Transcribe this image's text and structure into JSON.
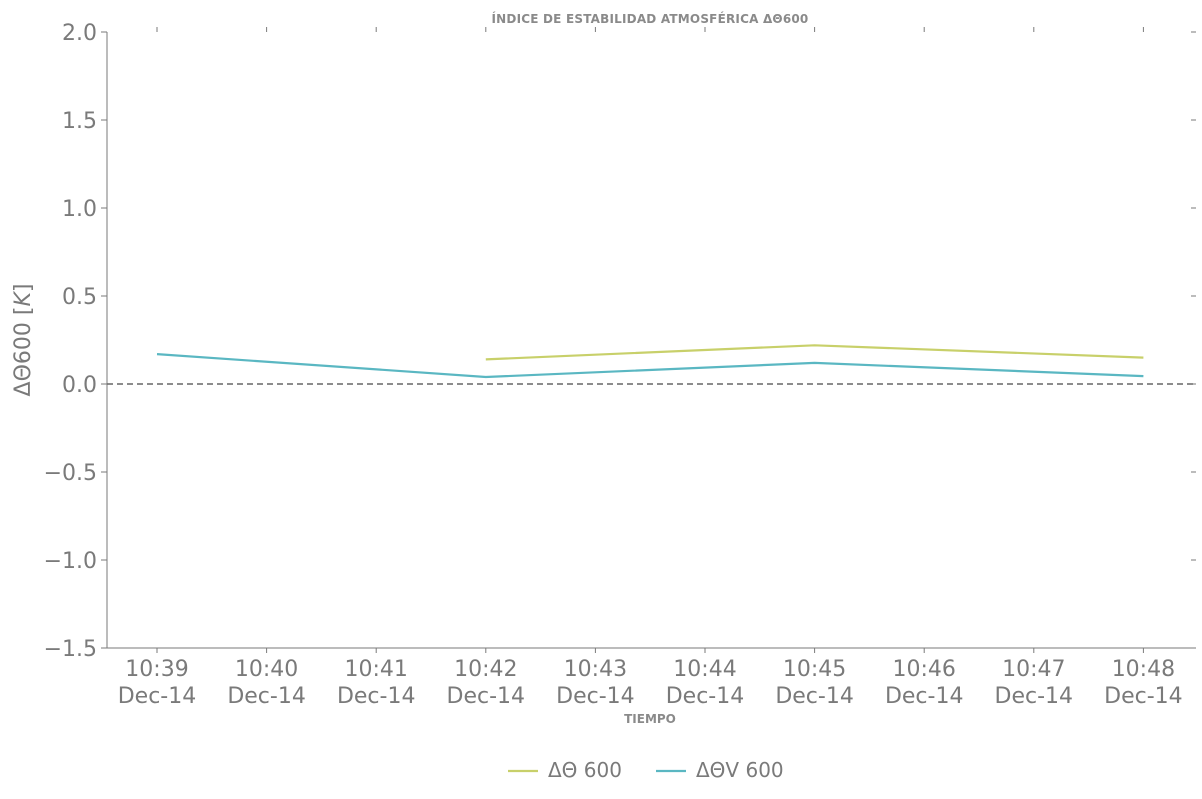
{
  "chart_data": {
    "type": "line",
    "title": "ÍNDICE DE ESTABILIDAD ATMOSFÉRICA ΔΘ600",
    "xlabel": "TIEMPO",
    "ylabel": "ΔΘ600 [K]",
    "ylim": [
      -1.5,
      2.0
    ],
    "yticks": [
      "−1.5",
      "−1.0",
      "−0.5",
      "0.0",
      "0.5",
      "1.0",
      "1.5",
      "2.0"
    ],
    "ytick_values": [
      -1.5,
      -1.0,
      -0.5,
      0.0,
      0.5,
      1.0,
      1.5,
      2.0
    ],
    "x_ticks": [
      {
        "time": "10:39",
        "date": "Dec-14"
      },
      {
        "time": "10:40",
        "date": "Dec-14"
      },
      {
        "time": "10:41",
        "date": "Dec-14"
      },
      {
        "time": "10:42",
        "date": "Dec-14"
      },
      {
        "time": "10:43",
        "date": "Dec-14"
      },
      {
        "time": "10:44",
        "date": "Dec-14"
      },
      {
        "time": "10:45",
        "date": "Dec-14"
      },
      {
        "time": "10:46",
        "date": "Dec-14"
      },
      {
        "time": "10:47",
        "date": "Dec-14"
      },
      {
        "time": "10:48",
        "date": "Dec-14"
      }
    ],
    "reference_line": {
      "y": 0.0,
      "style": "dashed",
      "color": "#666666"
    },
    "series": [
      {
        "name": "ΔΘ 600",
        "color": "#c8d06a",
        "x": [
          "10:42",
          "10:45",
          "10:48"
        ],
        "y": [
          0.14,
          0.22,
          0.15
        ]
      },
      {
        "name": "ΔΘV 600",
        "color": "#5ab7c2",
        "x": [
          "10:39",
          "10:42",
          "10:45",
          "10:48"
        ],
        "y": [
          0.17,
          0.04,
          0.12,
          0.045
        ]
      }
    ],
    "legend_position": "bottom-center",
    "grid": false
  }
}
